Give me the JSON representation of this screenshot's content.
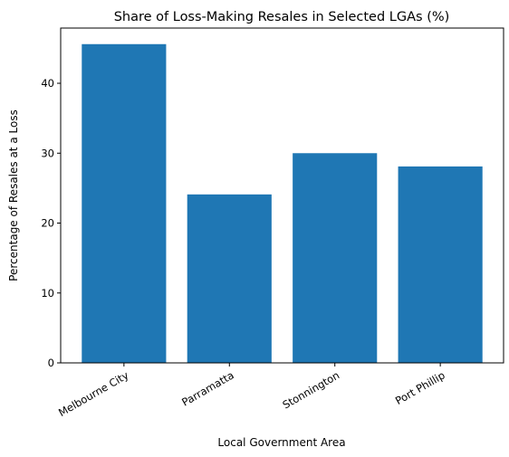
{
  "chart_data": {
    "type": "bar",
    "title": "Share of Loss-Making Resales in Selected LGAs (%)",
    "xlabel": "Local Government Area",
    "ylabel": "Percentage of Resales at a Loss",
    "categories": [
      "Melbourne City",
      "Parramatta",
      "Stonnington",
      "Port Phillip"
    ],
    "values": [
      45.6,
      24.1,
      30.0,
      28.1
    ],
    "ylim": [
      0,
      47.9
    ],
    "yticks": [
      0,
      10,
      20,
      30,
      40
    ],
    "ytick_labels": [
      "0",
      "10",
      "20",
      "30",
      "40"
    ],
    "bar_color": "#1f77b4",
    "grid": false,
    "legend": false
  }
}
